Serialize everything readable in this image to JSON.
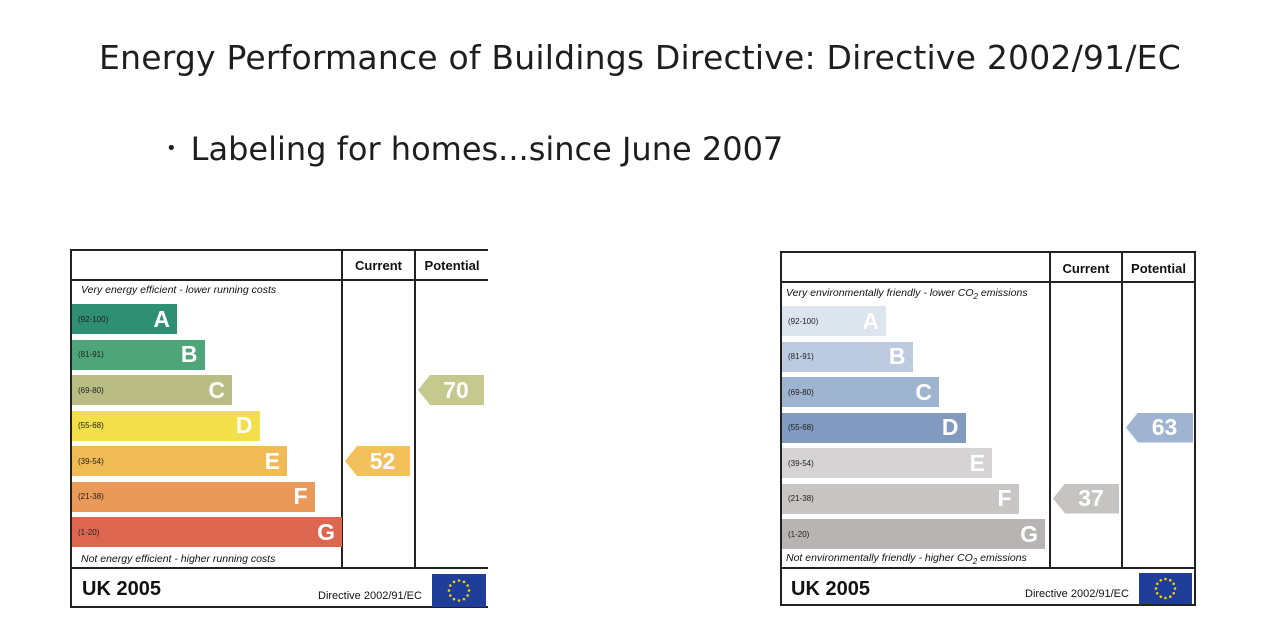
{
  "slide": {
    "title": "Energy Performance of Buildings Directive: Directive 2002/91/EC",
    "bullet": "Labeling for homes...since June 2007",
    "bullet_marker": "•"
  },
  "energy_label": {
    "column_current": "Current",
    "column_potential": "Potential",
    "top_note": "Very energy efficient - lower running costs",
    "bottom_note": "Not energy efficient - higher running costs",
    "bands": [
      {
        "letter": "A",
        "range": "(92-100)",
        "color": "#2f8f73"
      },
      {
        "letter": "B",
        "range": "(81-91)",
        "color": "#4fa57a"
      },
      {
        "letter": "C",
        "range": "(69-80)",
        "color": "#b9bd83"
      },
      {
        "letter": "D",
        "range": "(55-68)",
        "color": "#f2df4a"
      },
      {
        "letter": "E",
        "range": "(39-54)",
        "color": "#f0bb55"
      },
      {
        "letter": "F",
        "range": "(21-38)",
        "color": "#ea9a58"
      },
      {
        "letter": "G",
        "range": "(1-20)",
        "color": "#dd6650"
      }
    ],
    "current": {
      "value": "52",
      "band": "E",
      "color": "#f2c15c"
    },
    "potential": {
      "value": "70",
      "band": "C",
      "color": "#c6c98e"
    },
    "footer_title": "UK 2005",
    "footer_directive": "Directive 2002/91/EC"
  },
  "environmental_label": {
    "column_current": "Current",
    "column_potential": "Potential",
    "top_note": "Very environmentally friendly - lower CO",
    "top_note_sub": "2",
    "top_note_tail": " emissions",
    "bottom_note": "Not environmentally friendly - higher CO",
    "bottom_note_sub": "2",
    "bottom_note_tail": " emissions",
    "bands": [
      {
        "letter": "A",
        "range": "(92-100)",
        "color": "#dce4ee"
      },
      {
        "letter": "B",
        "range": "(81-91)",
        "color": "#bccbe0"
      },
      {
        "letter": "C",
        "range": "(69-80)",
        "color": "#9fb4d0"
      },
      {
        "letter": "D",
        "range": "(55-68)",
        "color": "#829ac0"
      },
      {
        "letter": "E",
        "range": "(39-54)",
        "color": "#d5d3d3"
      },
      {
        "letter": "F",
        "range": "(21-38)",
        "color": "#c8c5c5"
      },
      {
        "letter": "G",
        "range": "(1-20)",
        "color": "#b8b4b4"
      }
    ],
    "current": {
      "value": "37",
      "band": "F",
      "color": "#c6c3c3"
    },
    "potential": {
      "value": "63",
      "band": "D",
      "color": "#9fb4d0"
    },
    "footer_title": "UK 2005",
    "footer_directive": "Directive 2002/91/EC"
  }
}
